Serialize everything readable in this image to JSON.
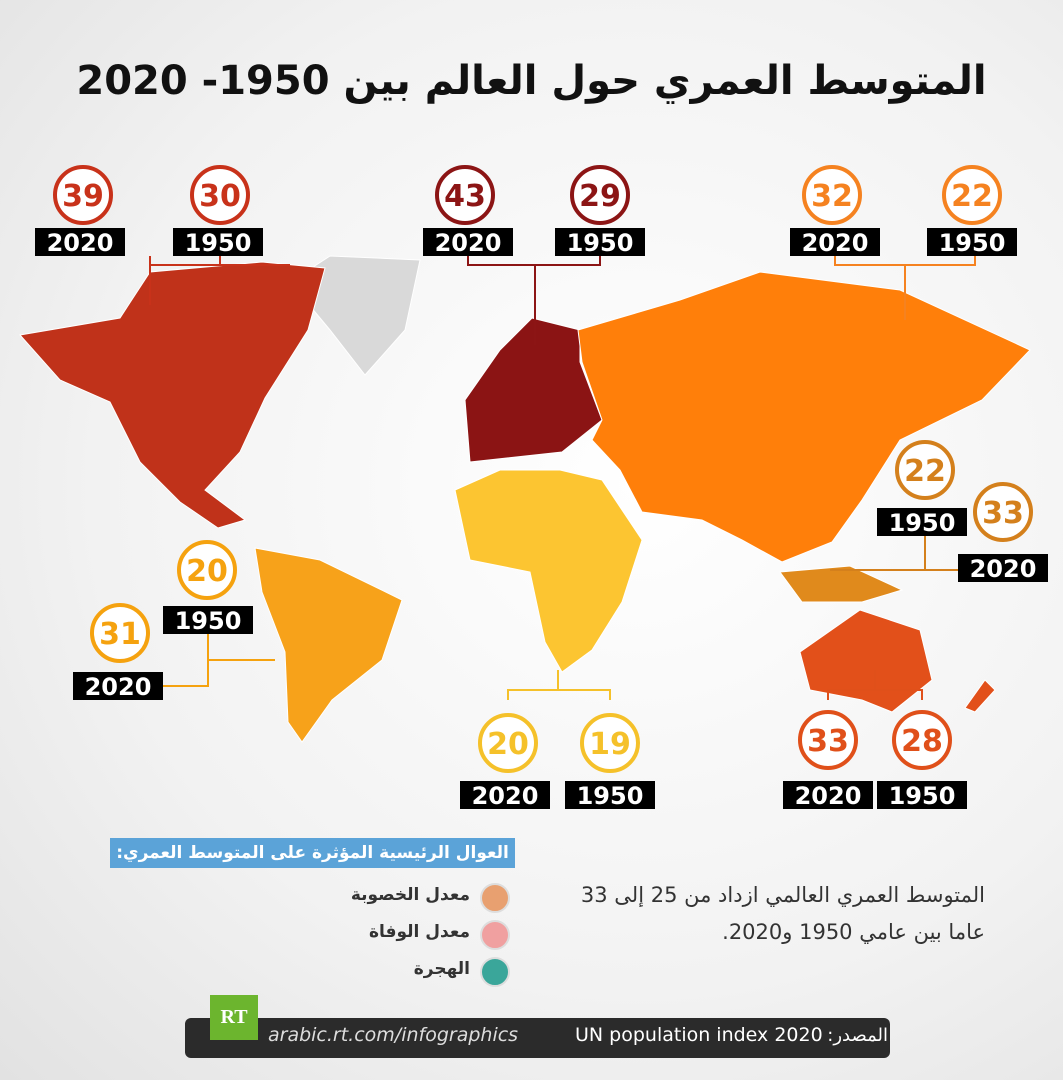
{
  "title": "المتوسط العمري حول العالم بين 1950- 2020",
  "regions": [
    {
      "color": "#c8321a",
      "readings": [
        {
          "year": "2020",
          "value": 39
        },
        {
          "year": "1950",
          "value": 30
        }
      ]
    },
    {
      "color": "#8c1515",
      "readings": [
        {
          "year": "2020",
          "value": 43
        },
        {
          "year": "1950",
          "value": 29
        }
      ]
    },
    {
      "color": "#f58220",
      "readings": [
        {
          "year": "2020",
          "value": 32
        },
        {
          "year": "1950",
          "value": 22
        }
      ]
    },
    {
      "color": "#d4801c",
      "readings": [
        {
          "year": "1950",
          "value": 22
        },
        {
          "year": "2020",
          "value": 33
        }
      ]
    },
    {
      "color": "#f5a20f",
      "readings": [
        {
          "year": "1950",
          "value": 20
        },
        {
          "year": "2020",
          "value": 31
        }
      ]
    },
    {
      "color": "#f5c12a",
      "readings": [
        {
          "year": "2020",
          "value": 20
        },
        {
          "year": "1950",
          "value": 19
        }
      ]
    },
    {
      "color": "#e0501a",
      "readings": [
        {
          "year": "2020",
          "value": 33
        },
        {
          "year": "1950",
          "value": 28
        }
      ]
    }
  ],
  "factors": {
    "heading": "العوال الرئيسية المؤثرة على المتوسط العمري:",
    "items": [
      "معدل الخصوبة",
      "معدل الوفاة",
      "الهجرة"
    ]
  },
  "summary": [
    "المتوسط العمري العالمي ازداد من 25 إلى 33",
    "عاما بين عامي 1950 و2020."
  ],
  "footer": {
    "logo": "RT",
    "url": "arabic.rt.com/infographics",
    "source_label": "المصدر:",
    "source": "UN population index 2020"
  }
}
